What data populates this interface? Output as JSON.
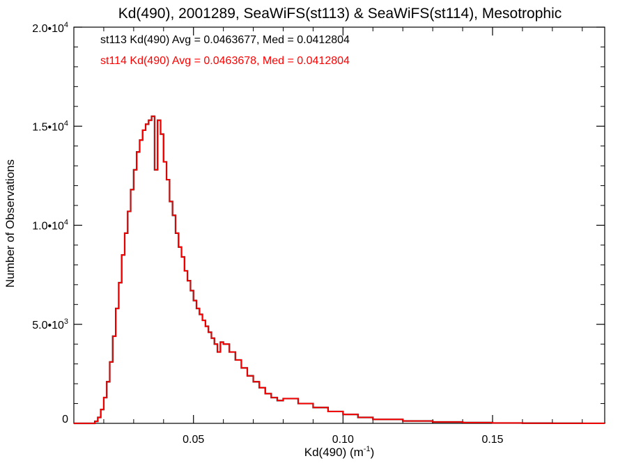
{
  "chart_data": {
    "type": "line",
    "title": "Kd(490), 2001289, SeaWiFS(st113) & SeaWiFS(st114), Mesotrophic",
    "xlabel": "Kd(490) (m",
    "xlabel_sup": "-1",
    "xlabel_end": ")",
    "ylabel": "Number of Observations",
    "xlim": [
      0.01,
      0.1875
    ],
    "ylim": [
      0,
      20000
    ],
    "x_ticks": [
      {
        "value": 0.05,
        "label": "0.05"
      },
      {
        "value": 0.1,
        "label": "0.10"
      },
      {
        "value": 0.15,
        "label": "0.15"
      }
    ],
    "y_ticks": [
      {
        "value": 0,
        "base": "0",
        "exp": ""
      },
      {
        "value": 5000,
        "base": "5.0•10",
        "exp": "3"
      },
      {
        "value": 10000,
        "base": "1.0•10",
        "exp": "4"
      },
      {
        "value": 15000,
        "base": "1.5•10",
        "exp": "4"
      },
      {
        "value": 20000,
        "base": "2.0•10",
        "exp": "4"
      }
    ],
    "annotations": [
      {
        "text": "st113 Kd(490) Avg = 0.0463677, Med = 0.0412804",
        "color": "#000000"
      },
      {
        "text": "st114 Kd(490) Avg = 0.0463678, Med = 0.0412804",
        "color": "#ff0000"
      }
    ],
    "series": [
      {
        "name": "st113",
        "color": "#000000",
        "x": [
          0.01,
          0.015,
          0.017,
          0.018,
          0.019,
          0.02,
          0.021,
          0.022,
          0.023,
          0.024,
          0.025,
          0.026,
          0.027,
          0.028,
          0.029,
          0.03,
          0.031,
          0.032,
          0.033,
          0.034,
          0.035,
          0.036,
          0.037,
          0.038,
          0.039,
          0.04,
          0.041,
          0.042,
          0.043,
          0.044,
          0.045,
          0.046,
          0.047,
          0.048,
          0.049,
          0.05,
          0.051,
          0.052,
          0.053,
          0.054,
          0.055,
          0.056,
          0.057,
          0.058,
          0.059,
          0.06,
          0.062,
          0.064,
          0.066,
          0.068,
          0.07,
          0.072,
          0.074,
          0.076,
          0.078,
          0.08,
          0.085,
          0.09,
          0.095,
          0.1,
          0.105,
          0.11,
          0.12,
          0.13,
          0.14,
          0.15,
          0.16,
          0.17,
          0.18,
          0.1875
        ],
        "values": [
          0,
          0,
          100,
          300,
          700,
          1300,
          2100,
          3100,
          4400,
          5800,
          7100,
          8500,
          9600,
          10700,
          11800,
          12800,
          13700,
          14300,
          14800,
          15100,
          15300,
          15500,
          12800,
          15300,
          14600,
          13200,
          12300,
          11200,
          10500,
          9600,
          8900,
          8400,
          7700,
          7200,
          6700,
          6200,
          5800,
          5500,
          5200,
          4900,
          4600,
          4300,
          4000,
          3600,
          4100,
          4000,
          3600,
          3200,
          2800,
          2400,
          2100,
          1800,
          1500,
          1300,
          1150,
          1250,
          1000,
          800,
          600,
          450,
          300,
          200,
          120,
          70,
          40,
          20,
          10,
          5,
          2,
          0
        ]
      },
      {
        "name": "st114",
        "color": "#ff0000",
        "x": [
          0.01,
          0.015,
          0.017,
          0.018,
          0.019,
          0.02,
          0.021,
          0.022,
          0.023,
          0.024,
          0.025,
          0.026,
          0.027,
          0.028,
          0.029,
          0.03,
          0.031,
          0.032,
          0.033,
          0.034,
          0.035,
          0.036,
          0.037,
          0.038,
          0.039,
          0.04,
          0.041,
          0.042,
          0.043,
          0.044,
          0.045,
          0.046,
          0.047,
          0.048,
          0.049,
          0.05,
          0.051,
          0.052,
          0.053,
          0.054,
          0.055,
          0.056,
          0.057,
          0.058,
          0.059,
          0.06,
          0.062,
          0.064,
          0.066,
          0.068,
          0.07,
          0.072,
          0.074,
          0.076,
          0.078,
          0.08,
          0.085,
          0.09,
          0.095,
          0.1,
          0.105,
          0.11,
          0.12,
          0.13,
          0.14,
          0.15,
          0.16,
          0.17,
          0.18,
          0.1875
        ],
        "values": [
          0,
          0,
          100,
          300,
          700,
          1300,
          2100,
          3100,
          4400,
          5800,
          7100,
          8500,
          9600,
          10700,
          11800,
          12800,
          13700,
          14300,
          14800,
          15100,
          15300,
          15500,
          12800,
          15300,
          14600,
          13200,
          12300,
          11200,
          10500,
          9600,
          8900,
          8400,
          7700,
          7200,
          6700,
          6200,
          5800,
          5500,
          5200,
          4900,
          4600,
          4300,
          4000,
          3600,
          4100,
          4000,
          3600,
          3200,
          2800,
          2400,
          2100,
          1800,
          1500,
          1300,
          1150,
          1250,
          1000,
          800,
          600,
          450,
          300,
          200,
          120,
          70,
          40,
          20,
          10,
          5,
          2,
          0
        ]
      }
    ]
  }
}
